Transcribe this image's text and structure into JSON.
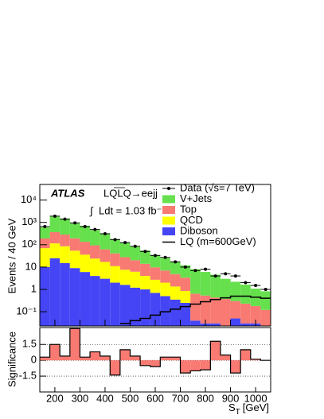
{
  "chart_data": {
    "type": "stacked_histogram",
    "experiment": "ATLAS",
    "process": "LQLQ→eejj",
    "luminosity": "Ldt = 1.03 fb⁻¹",
    "y_label": "Events / 40 GeV",
    "x_label": {
      "main": "S",
      "sub": "T",
      "unit": "[GeV]"
    },
    "bins": [
      140,
      180,
      220,
      260,
      300,
      340,
      380,
      420,
      460,
      500,
      540,
      580,
      620,
      660,
      700,
      740,
      780,
      820,
      860,
      900,
      940,
      980,
      1020,
      1060
    ],
    "xlim": [
      140,
      1060
    ],
    "xticks": [
      200,
      300,
      400,
      500,
      600,
      700,
      800,
      900,
      1000
    ],
    "log_y": true,
    "ylim": [
      0.023,
      50000
    ],
    "yticks": [
      {
        "value": 10000,
        "label": "10⁴"
      },
      {
        "value": 1000,
        "label": "10³"
      },
      {
        "value": 100,
        "label": "10²"
      },
      10,
      1,
      {
        "value": 0.1,
        "label": "10⁻¹"
      }
    ],
    "series": [
      {
        "name": "Diboson",
        "color": "#4545f5",
        "values": [
          10,
          25,
          15,
          9,
          6,
          4,
          3,
          2,
          1.6,
          1.2,
          1,
          0.7,
          0.5,
          0.35,
          0.25,
          0.04,
          0.03,
          0.03,
          0.02,
          0.05,
          0.03,
          0.03,
          0.02
        ]
      },
      {
        "name": "QCD",
        "color": "#ffff00",
        "values": [
          60,
          90,
          70,
          45,
          30,
          20,
          14,
          9,
          6,
          5,
          3,
          2,
          1.5,
          1,
          0.6,
          0,
          0,
          0,
          0,
          0,
          0,
          0,
          0
        ]
      },
      {
        "name": "Top",
        "color": "#f87a72",
        "values": [
          120,
          250,
          200,
          140,
          100,
          70,
          45,
          30,
          20,
          14,
          10,
          7,
          5,
          3.5,
          2.5,
          0.6,
          0.5,
          0.4,
          0.35,
          0.25,
          0.2,
          0.15,
          0.1
        ]
      },
      {
        "name": "V+Jets",
        "color": "#66e04d",
        "values": [
          410,
          1435,
          1215,
          706,
          564,
          356,
          238,
          139,
          92,
          60,
          41,
          25,
          18,
          13,
          8.6,
          7.4,
          5.5,
          4.1,
          2.6,
          1.9,
          1.4,
          0.9,
          0.7
        ]
      }
    ],
    "data": {
      "name": "Data (√s=7 TeV)",
      "color": "#000000",
      "values": [
        650,
        1900,
        1400,
        950,
        650,
        480,
        310,
        170,
        125,
        85,
        50,
        33,
        27,
        17,
        10,
        7,
        8,
        4,
        5,
        4,
        2,
        1.5,
        1
      ]
    },
    "signal": {
      "name": "LQ (m=600GeV)",
      "color": "#000000",
      "values": [
        null,
        null,
        null,
        null,
        null,
        null,
        null,
        null,
        0.03,
        0.04,
        0.05,
        0.07,
        0.1,
        0.13,
        0.17,
        0.22,
        0.28,
        0.35,
        0.42,
        0.5,
        0.5,
        0.45,
        0.4
      ]
    },
    "ratio": {
      "y_label": "Significance",
      "ylim": [
        -3,
        3.1
      ],
      "yticks": [
        1.5,
        0,
        -1.5
      ],
      "color": "#f87a72",
      "values": [
        0.3,
        1.5,
        0.4,
        3.0,
        0.3,
        0.8,
        0.4,
        -1.4,
        1.0,
        0.4,
        -0.5,
        -0.6,
        0.3,
        0.3,
        -1.2,
        -1.0,
        -0.9,
        1.8,
        0.5,
        -1.2,
        1.0,
        0.1,
        0.0
      ]
    }
  }
}
